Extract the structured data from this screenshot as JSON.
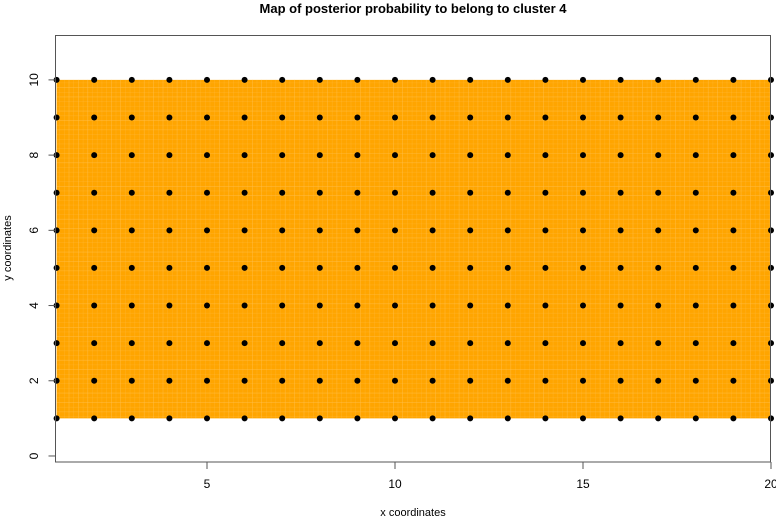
{
  "chart_data": {
    "type": "heatmap",
    "title": "Map of posterior probability to belong to cluster  4",
    "xlabel": "x coordinates",
    "ylabel": "y coordinates",
    "xlim": [
      1,
      20
    ],
    "ylim": [
      -0.16,
      11.18
    ],
    "x_ticks": [
      5,
      10,
      15,
      20
    ],
    "y_ticks": [
      0,
      2,
      4,
      6,
      8,
      10
    ],
    "grid": false,
    "fill_color": "#FFA500",
    "fill_extent": {
      "x": [
        1,
        20
      ],
      "y": [
        1,
        10
      ]
    },
    "points": {
      "x": [
        1,
        2,
        3,
        4,
        5,
        6,
        7,
        8,
        9,
        10,
        11,
        12,
        13,
        14,
        15,
        16,
        17,
        18,
        19,
        20
      ],
      "y": [
        1,
        2,
        3,
        4,
        5,
        6,
        7,
        8,
        9,
        10
      ],
      "color": "#000000"
    }
  }
}
